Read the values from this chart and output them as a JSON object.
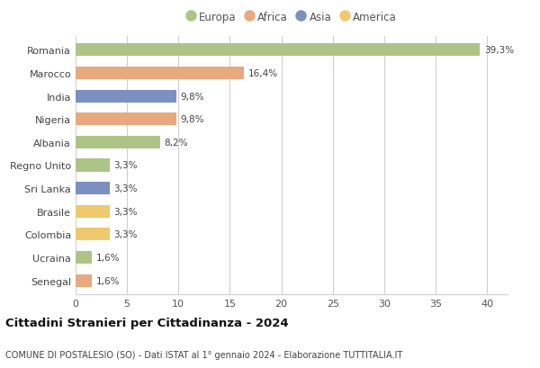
{
  "countries": [
    "Romania",
    "Marocco",
    "India",
    "Nigeria",
    "Albania",
    "Regno Unito",
    "Sri Lanka",
    "Brasile",
    "Colombia",
    "Ucraina",
    "Senegal"
  ],
  "values": [
    39.3,
    16.4,
    9.8,
    9.8,
    8.2,
    3.3,
    3.3,
    3.3,
    3.3,
    1.6,
    1.6
  ],
  "labels": [
    "39,3%",
    "16,4%",
    "9,8%",
    "9,8%",
    "8,2%",
    "3,3%",
    "3,3%",
    "3,3%",
    "3,3%",
    "1,6%",
    "1,6%"
  ],
  "colors": [
    "#aec486",
    "#e8a97e",
    "#7b8fc0",
    "#e8a97e",
    "#aec486",
    "#aec486",
    "#7b8fc0",
    "#f0c86e",
    "#f0c86e",
    "#aec486",
    "#e8a97e"
  ],
  "legend_labels": [
    "Europa",
    "Africa",
    "Asia",
    "America"
  ],
  "legend_colors": [
    "#aec486",
    "#e8a97e",
    "#7b8fc0",
    "#f0c86e"
  ],
  "title": "Cittadini Stranieri per Cittadinanza - 2024",
  "subtitle": "COMUNE DI POSTALESIO (SO) - Dati ISTAT al 1° gennaio 2024 - Elaborazione TUTTITALIA.IT",
  "xlim": [
    0,
    42
  ],
  "xticks": [
    0,
    5,
    10,
    15,
    20,
    25,
    30,
    35,
    40
  ],
  "background_color": "#ffffff",
  "grid_color": "#d0d0d0",
  "bar_height": 0.55
}
